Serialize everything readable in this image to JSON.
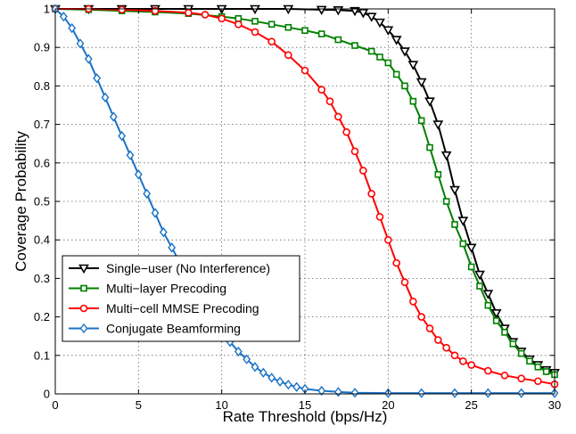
{
  "chart_data": {
    "type": "line",
    "xlabel": "Rate Threshold (bps/Hz)",
    "ylabel": "Coverage Probability",
    "xlim": [
      0,
      30
    ],
    "ylim": [
      0,
      1
    ],
    "xticks": [
      "0",
      "5",
      "10",
      "15",
      "20",
      "25",
      "30"
    ],
    "yticks": [
      "0",
      "0.1",
      "0.2",
      "0.3",
      "0.4",
      "0.5",
      "0.6",
      "0.7",
      "0.8",
      "0.9",
      "1"
    ],
    "grid": true,
    "legend_position": "lower-left",
    "series": [
      {
        "name": "Single−user (No Interference)",
        "color": "#000000",
        "marker": "triangle-down",
        "x": [
          0,
          2,
          4,
          6,
          8,
          10,
          12,
          14,
          16,
          17,
          18,
          18.5,
          19,
          19.5,
          20,
          20.5,
          21,
          21.5,
          22,
          22.5,
          23,
          23.5,
          24,
          24.5,
          25,
          25.5,
          26,
          26.5,
          27,
          27.5,
          28,
          28.5,
          29,
          29.5,
          30
        ],
        "y": [
          1.0,
          1.0,
          1.0,
          1.0,
          1.0,
          1.0,
          1.0,
          1.0,
          0.998,
          0.997,
          0.995,
          0.99,
          0.98,
          0.965,
          0.945,
          0.92,
          0.89,
          0.855,
          0.81,
          0.76,
          0.7,
          0.62,
          0.53,
          0.45,
          0.38,
          0.31,
          0.26,
          0.21,
          0.17,
          0.135,
          0.11,
          0.09,
          0.075,
          0.062,
          0.055
        ]
      },
      {
        "name": "Multi−layer Precoding",
        "color": "#008000",
        "marker": "square",
        "x": [
          0,
          2,
          4,
          6,
          8,
          10,
          11,
          12,
          13,
          14,
          15,
          16,
          17,
          18,
          19,
          19.5,
          20,
          20.5,
          21,
          21.5,
          22,
          22.5,
          23,
          23.5,
          24,
          24.5,
          25,
          25.5,
          26,
          26.5,
          27,
          27.5,
          28,
          28.5,
          29,
          29.5,
          30
        ],
        "y": [
          1.0,
          0.998,
          0.995,
          0.992,
          0.988,
          0.98,
          0.975,
          0.968,
          0.96,
          0.952,
          0.944,
          0.935,
          0.92,
          0.905,
          0.89,
          0.875,
          0.86,
          0.83,
          0.8,
          0.76,
          0.71,
          0.64,
          0.57,
          0.5,
          0.44,
          0.39,
          0.33,
          0.28,
          0.23,
          0.19,
          0.16,
          0.13,
          0.105,
          0.085,
          0.07,
          0.058,
          0.05
        ]
      },
      {
        "name": "Multi−cell MMSE Precoding",
        "color": "#ff0000",
        "marker": "circle",
        "x": [
          0,
          2,
          4,
          6,
          8,
          9,
          10,
          11,
          12,
          13,
          14,
          15,
          16,
          16.5,
          17,
          17.5,
          18,
          18.5,
          19,
          19.5,
          20,
          20.5,
          21,
          21.5,
          22,
          22.5,
          23,
          23.5,
          24,
          24.5,
          25,
          26,
          27,
          28,
          29,
          30
        ],
        "y": [
          1.0,
          1.0,
          0.998,
          0.995,
          0.99,
          0.985,
          0.975,
          0.96,
          0.94,
          0.915,
          0.88,
          0.84,
          0.79,
          0.76,
          0.72,
          0.68,
          0.63,
          0.58,
          0.52,
          0.46,
          0.4,
          0.34,
          0.29,
          0.24,
          0.2,
          0.17,
          0.14,
          0.12,
          0.1,
          0.085,
          0.075,
          0.06,
          0.048,
          0.04,
          0.033,
          0.025
        ]
      },
      {
        "name": "Conjugate Beamforming",
        "color": "#1a73c7",
        "marker": "diamond",
        "x": [
          0,
          0.5,
          1,
          1.5,
          2,
          2.5,
          3,
          3.5,
          4,
          4.5,
          5,
          5.5,
          6,
          6.5,
          7,
          7.5,
          8,
          8.5,
          9,
          9.5,
          10,
          10.5,
          11,
          11.5,
          12,
          12.5,
          13,
          13.5,
          14,
          14.5,
          15,
          16,
          17,
          18,
          20,
          22,
          24,
          26,
          28,
          30
        ],
        "y": [
          1.0,
          0.98,
          0.95,
          0.91,
          0.87,
          0.82,
          0.77,
          0.72,
          0.67,
          0.62,
          0.57,
          0.52,
          0.47,
          0.42,
          0.38,
          0.34,
          0.3,
          0.26,
          0.22,
          0.19,
          0.16,
          0.135,
          0.11,
          0.09,
          0.07,
          0.055,
          0.042,
          0.032,
          0.024,
          0.018,
          0.013,
          0.008,
          0.005,
          0.003,
          0.002,
          0.002,
          0.002,
          0.002,
          0.002,
          0.002
        ]
      }
    ]
  }
}
